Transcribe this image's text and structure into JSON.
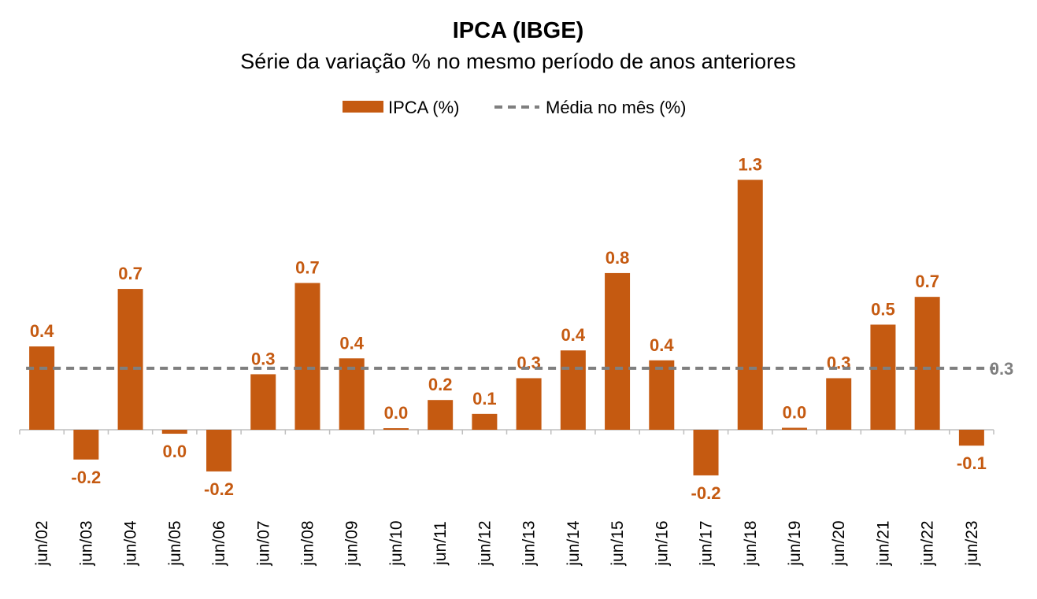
{
  "chart_data": {
    "type": "bar",
    "title": "IPCA (IBGE)",
    "subtitle": "Série da variação % no mesmo período de anos anteriores",
    "categories": [
      "jun/02",
      "jun/03",
      "jun/04",
      "jun/05",
      "jun/06",
      "jun/07",
      "jun/08",
      "jun/09",
      "jun/10",
      "jun/11",
      "jun/12",
      "jun/13",
      "jun/14",
      "jun/15",
      "jun/16",
      "jun/17",
      "jun/18",
      "jun/19",
      "jun/20",
      "jun/21",
      "jun/22",
      "jun/23"
    ],
    "series": [
      {
        "name": "IPCA (%)",
        "values": [
          0.42,
          -0.15,
          0.71,
          -0.02,
          -0.21,
          0.28,
          0.74,
          0.36,
          0.0,
          0.15,
          0.08,
          0.26,
          0.4,
          0.79,
          0.35,
          -0.23,
          1.26,
          0.01,
          0.26,
          0.53,
          0.67,
          -0.08
        ],
        "labels": [
          "0.4",
          "-0.2",
          "0.7",
          "0.0",
          "-0.2",
          "0.3",
          "0.7",
          "0.4",
          "0.0",
          "0.2",
          "0.1",
          "0.3",
          "0.4",
          "0.8",
          "0.4",
          "-0.2",
          "1.3",
          "0.0",
          "0.3",
          "0.5",
          "0.7",
          "-0.1"
        ]
      },
      {
        "name": "Média no mês (%)",
        "type": "line",
        "style": "dashed",
        "value": 0.31,
        "label": "0.3"
      }
    ],
    "ylim": [
      -0.4,
      1.45
    ],
    "grid": false,
    "legend": "top-center",
    "colors": {
      "bar": "#C55A11",
      "avg_line": "#7F7F7F",
      "axis": "#BFBFBF"
    }
  }
}
